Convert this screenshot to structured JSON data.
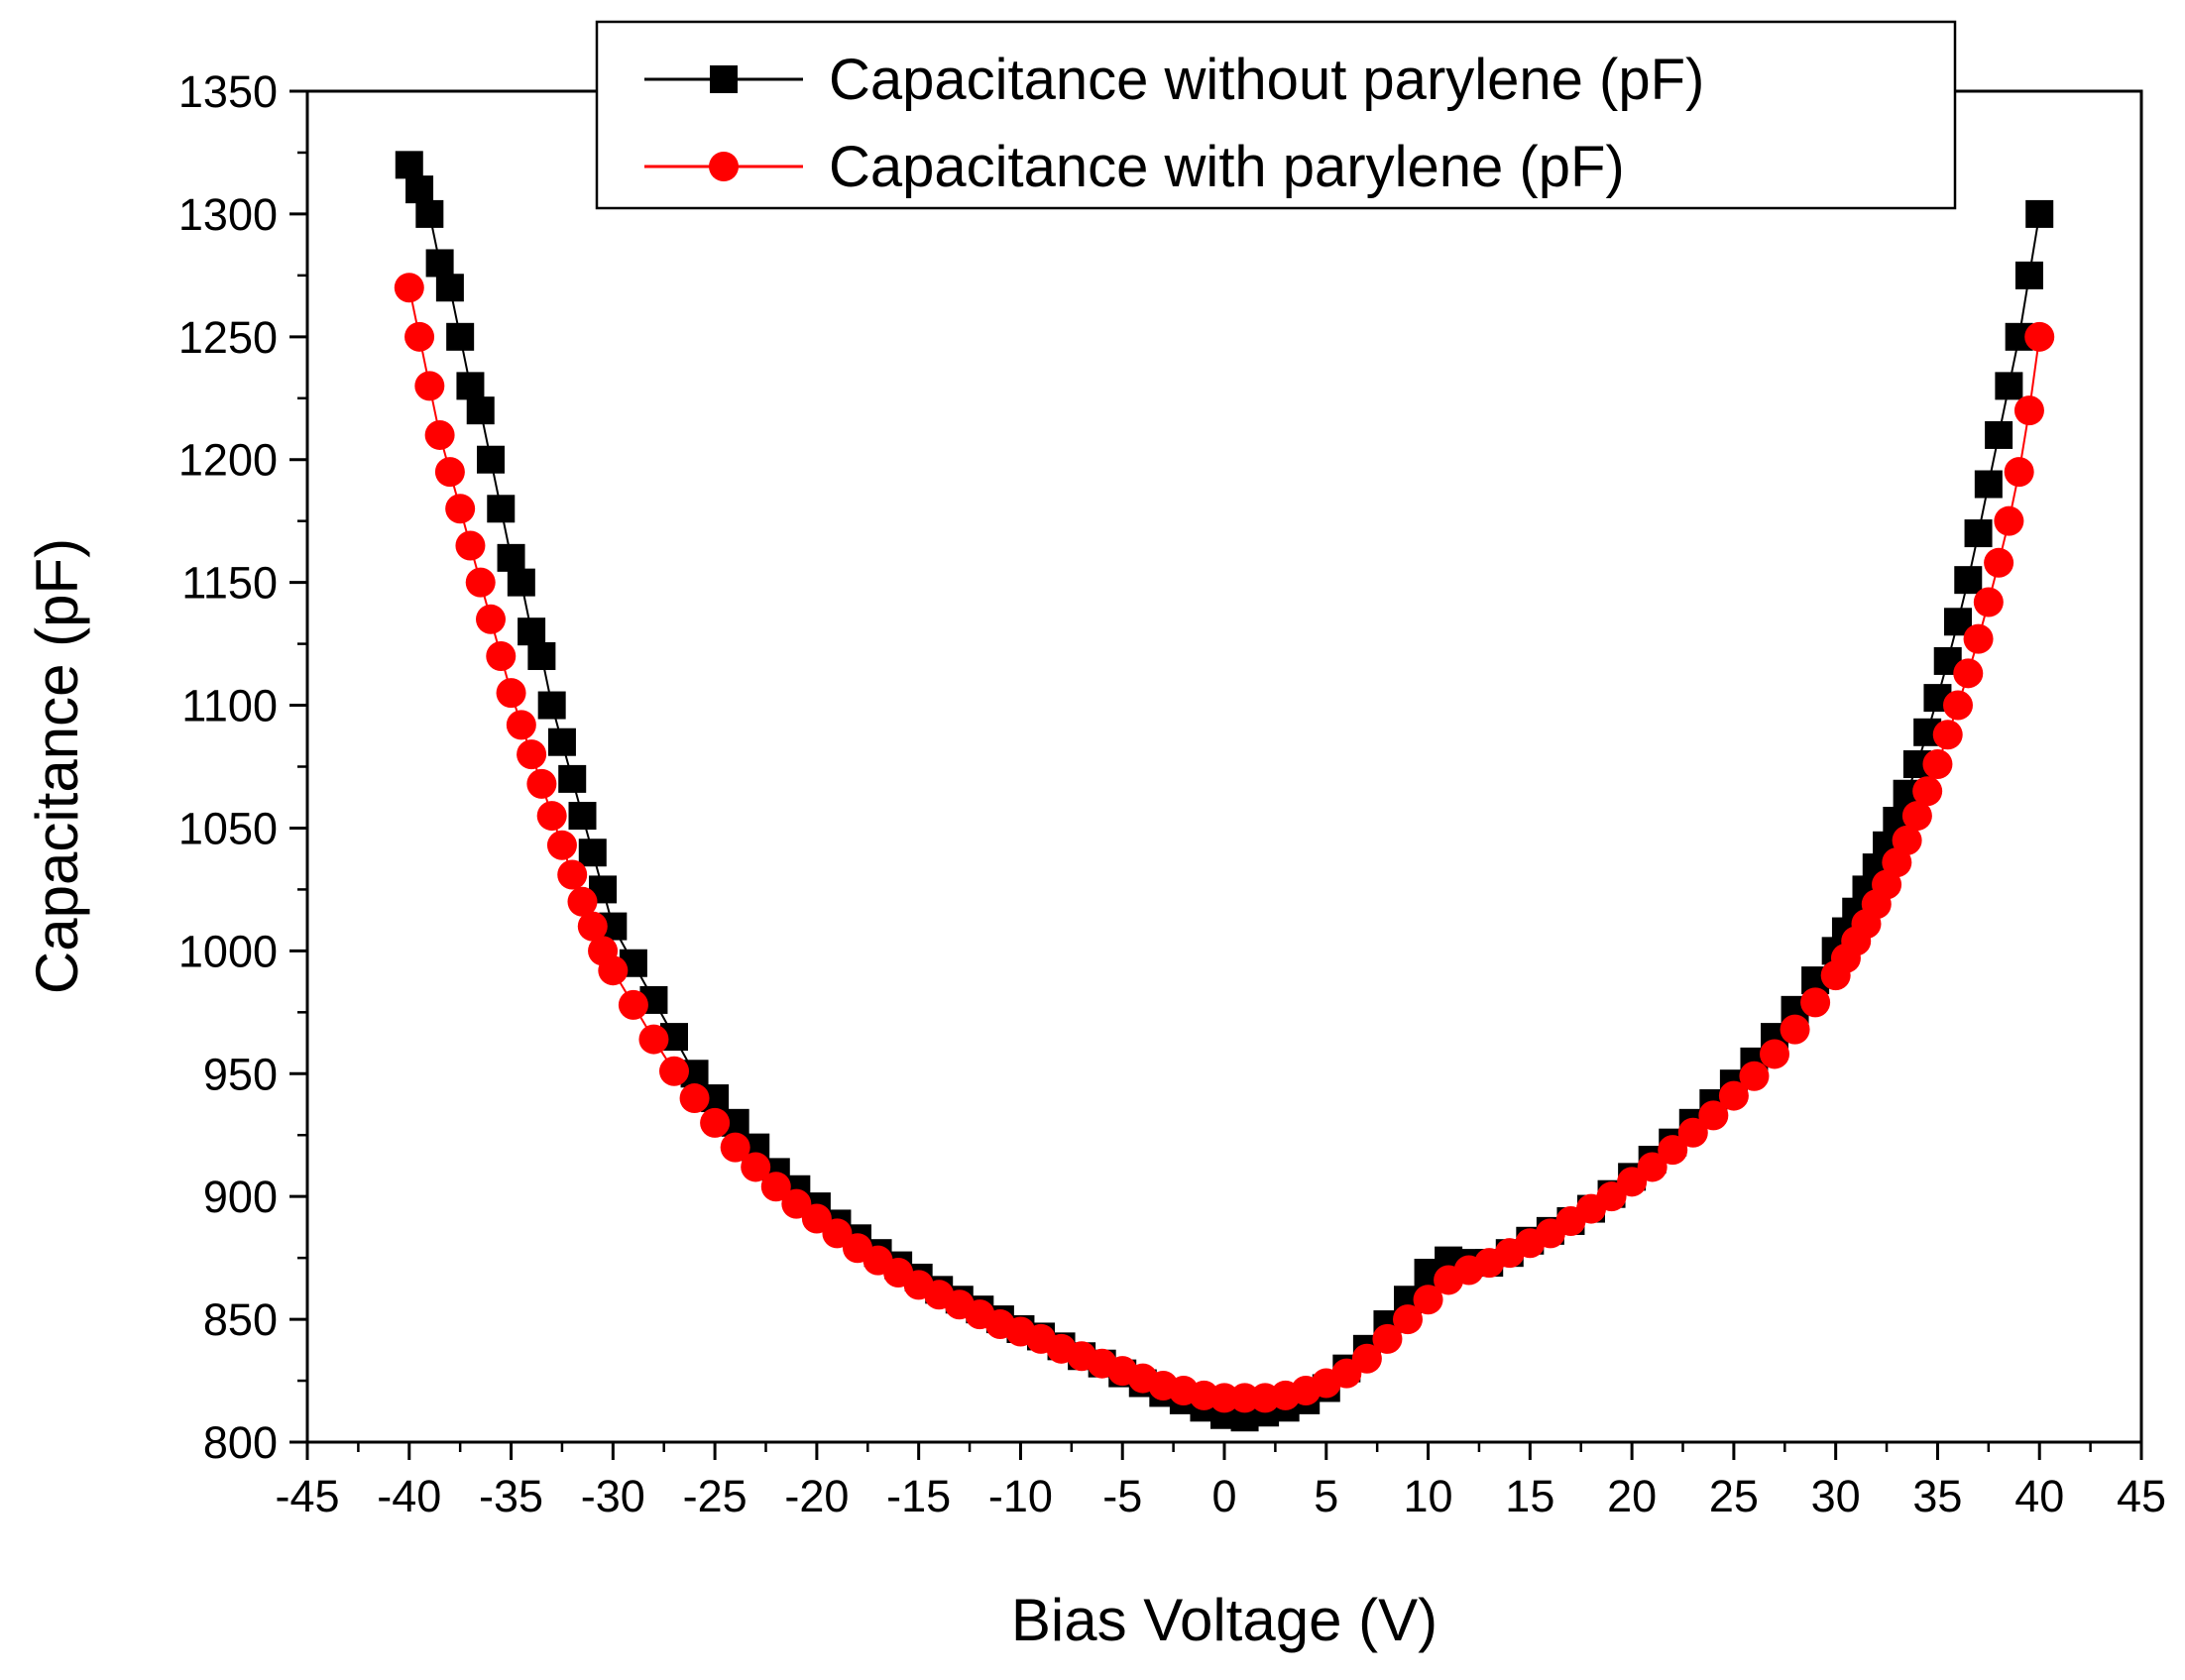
{
  "chart_data": {
    "type": "scatter",
    "title": "",
    "xlabel": "Bias Voltage (V)",
    "ylabel": "Capacitance (pF)",
    "xlim": [
      -45,
      45
    ],
    "ylim": [
      800,
      1350
    ],
    "xticks": [
      "-45",
      "-40",
      "-35",
      "-30",
      "-25",
      "-20",
      "-15",
      "-10",
      "-5",
      "0",
      "5",
      "10",
      "15",
      "20",
      "25",
      "30",
      "35",
      "40",
      "45"
    ],
    "yticks": [
      "800",
      "850",
      "900",
      "950",
      "1000",
      "1050",
      "1100",
      "1150",
      "1200",
      "1250",
      "1300",
      "1350"
    ],
    "legend_position": "top-right",
    "series": [
      {
        "name": "Capacitance without parylene (pF)",
        "color": "#000000",
        "marker": "square",
        "x": [
          -40,
          -39.5,
          -39,
          -38.5,
          -38,
          -37.5,
          -37,
          -36.5,
          -36,
          -35.5,
          -35,
          -34.5,
          -34,
          -33.5,
          -33,
          -32.5,
          -32,
          -31.5,
          -31,
          -30.5,
          -30,
          -29,
          -28,
          -27,
          -26,
          -25,
          -24,
          -23,
          -22,
          -21,
          -20,
          -19,
          -18,
          -17,
          -16,
          -15,
          -14,
          -13,
          -12,
          -11,
          -10,
          -9,
          -8,
          -7,
          -6,
          -5,
          -4,
          -3,
          -2,
          -1,
          0,
          1,
          2,
          3,
          4,
          5,
          6,
          7,
          8,
          9,
          10,
          11,
          12,
          13,
          14,
          15,
          16,
          17,
          18,
          19,
          20,
          21,
          22,
          23,
          24,
          25,
          26,
          27,
          28,
          29,
          30,
          30.5,
          31,
          31.5,
          32,
          32.5,
          33,
          33.5,
          34,
          34.5,
          35,
          35.5,
          36,
          36.5,
          37,
          37.5,
          38,
          38.5,
          39,
          39.5,
          40
        ],
        "values": [
          1320,
          1310,
          1300,
          1280,
          1270,
          1250,
          1230,
          1220,
          1200,
          1180,
          1160,
          1150,
          1130,
          1120,
          1100,
          1085,
          1070,
          1055,
          1040,
          1025,
          1010,
          995,
          980,
          965,
          950,
          940,
          930,
          920,
          910,
          903,
          896,
          889,
          883,
          877,
          872,
          867,
          862,
          858,
          854,
          850,
          846,
          843,
          839,
          835,
          832,
          828,
          824,
          820,
          817,
          814,
          811,
          810,
          812,
          814,
          817,
          822,
          830,
          838,
          848,
          858,
          869,
          874,
          873,
          873,
          877,
          882,
          886,
          890,
          895,
          901,
          908,
          915,
          922,
          930,
          938,
          946,
          955,
          965,
          976,
          988,
          1000,
          1008,
          1016,
          1025,
          1034,
          1043,
          1053,
          1064,
          1076,
          1089,
          1103,
          1118,
          1134,
          1151,
          1170,
          1190,
          1210,
          1230,
          1250,
          1275,
          1300
        ]
      },
      {
        "name": "Capacitance with parylene (pF)",
        "color": "#ff0000",
        "marker": "circle",
        "x": [
          -40,
          -39.5,
          -39,
          -38.5,
          -38,
          -37.5,
          -37,
          -36.5,
          -36,
          -35.5,
          -35,
          -34.5,
          -34,
          -33.5,
          -33,
          -32.5,
          -32,
          -31.5,
          -31,
          -30.5,
          -30,
          -29,
          -28,
          -27,
          -26,
          -25,
          -24,
          -23,
          -22,
          -21,
          -20,
          -19,
          -18,
          -17,
          -16,
          -15,
          -14,
          -13,
          -12,
          -11,
          -10,
          -9,
          -8,
          -7,
          -6,
          -5,
          -4,
          -3,
          -2,
          -1,
          0,
          1,
          2,
          3,
          4,
          5,
          6,
          7,
          8,
          9,
          10,
          11,
          12,
          13,
          14,
          15,
          16,
          17,
          18,
          19,
          20,
          21,
          22,
          23,
          24,
          25,
          26,
          27,
          28,
          29,
          30,
          30.5,
          31,
          31.5,
          32,
          32.5,
          33,
          33.5,
          34,
          34.5,
          35,
          35.5,
          36,
          36.5,
          37,
          37.5,
          38,
          38.5,
          39,
          39.5,
          40
        ],
        "values": [
          1270,
          1250,
          1230,
          1210,
          1195,
          1180,
          1165,
          1150,
          1135,
          1120,
          1105,
          1092,
          1080,
          1068,
          1055,
          1043,
          1031,
          1020,
          1010,
          1000,
          992,
          978,
          964,
          951,
          940,
          930,
          920,
          912,
          904,
          897,
          891,
          885,
          879,
          874,
          869,
          864,
          860,
          856,
          852,
          848,
          845,
          842,
          838,
          835,
          832,
          829,
          826,
          823,
          821,
          819,
          818,
          818,
          818,
          819,
          821,
          824,
          828,
          834,
          842,
          850,
          858,
          866,
          870,
          873,
          877,
          881,
          885,
          890,
          895,
          900,
          906,
          912,
          919,
          926,
          933,
          941,
          949,
          958,
          968,
          979,
          990,
          997,
          1004,
          1011,
          1019,
          1027,
          1036,
          1045,
          1055,
          1065,
          1076,
          1088,
          1100,
          1113,
          1127,
          1142,
          1158,
          1175,
          1195,
          1220,
          1250
        ]
      }
    ]
  }
}
